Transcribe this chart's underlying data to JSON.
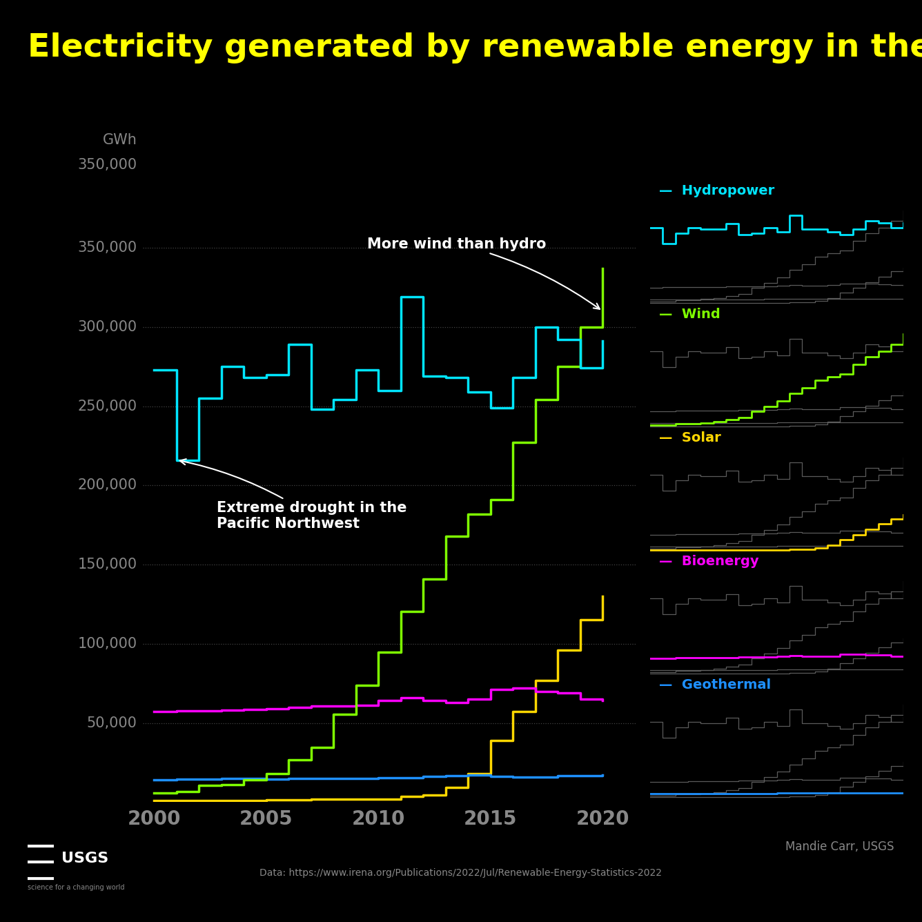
{
  "title": "Electricity generated by renewable energy in the U.S. ⚡",
  "background_color": "#000000",
  "title_color": "#ffff00",
  "title_fontsize": 34,
  "tick_color": "#888888",
  "grid_color": "#444444",
  "years": [
    2000,
    2001,
    2002,
    2003,
    2004,
    2005,
    2006,
    2007,
    2008,
    2009,
    2010,
    2011,
    2012,
    2013,
    2014,
    2015,
    2016,
    2017,
    2018,
    2019,
    2020
  ],
  "hydropower": [
    273000,
    216000,
    255000,
    275000,
    268000,
    270000,
    289000,
    248000,
    254000,
    273000,
    260000,
    319000,
    269000,
    268000,
    259000,
    249000,
    268000,
    300000,
    292000,
    274000,
    291000
  ],
  "wind": [
    5600,
    6700,
    10400,
    11200,
    14100,
    17800,
    26600,
    34400,
    55400,
    73900,
    94600,
    120200,
    140900,
    168000,
    182000,
    191000,
    227000,
    254000,
    275000,
    300000,
    337000
  ],
  "solar": [
    900,
    900,
    1000,
    1100,
    1200,
    1300,
    1500,
    1800,
    2000,
    1900,
    2000,
    3800,
    4300,
    9200,
    18000,
    39000,
    57000,
    77000,
    96000,
    115000,
    130000
  ],
  "bioenergy": [
    57000,
    57500,
    57700,
    58000,
    58500,
    59000,
    60000,
    60500,
    60700,
    61000,
    64000,
    66000,
    64000,
    63000,
    65000,
    71000,
    72000,
    70000,
    69000,
    65000,
    64000
  ],
  "geothermal": [
    14000,
    14300,
    14500,
    14900,
    15000,
    14700,
    14800,
    14800,
    14900,
    15000,
    15400,
    15500,
    16100,
    16600,
    17000,
    16200,
    15900,
    15900,
    16700,
    16600,
    17000
  ],
  "hydropower_color": "#00e5ff",
  "wind_color": "#7fff00",
  "solar_color": "#ffd700",
  "bioenergy_color": "#ff00ff",
  "geothermal_color": "#1e90ff",
  "annotation1_text": "Extreme drought in the\nPacific Northwest",
  "annotation2_text": "More wind than hydro",
  "yticks": [
    50000,
    100000,
    150000,
    200000,
    250000,
    300000,
    350000
  ],
  "ylim": [
    0,
    390000
  ],
  "xlim": [
    1999.5,
    2021.5
  ],
  "footer_text1": "Mandie Carr, USGS",
  "footer_text2": "Data: https://www.irena.org/Publications/2022/Jul/Renewable-Energy-Statistics-2022"
}
